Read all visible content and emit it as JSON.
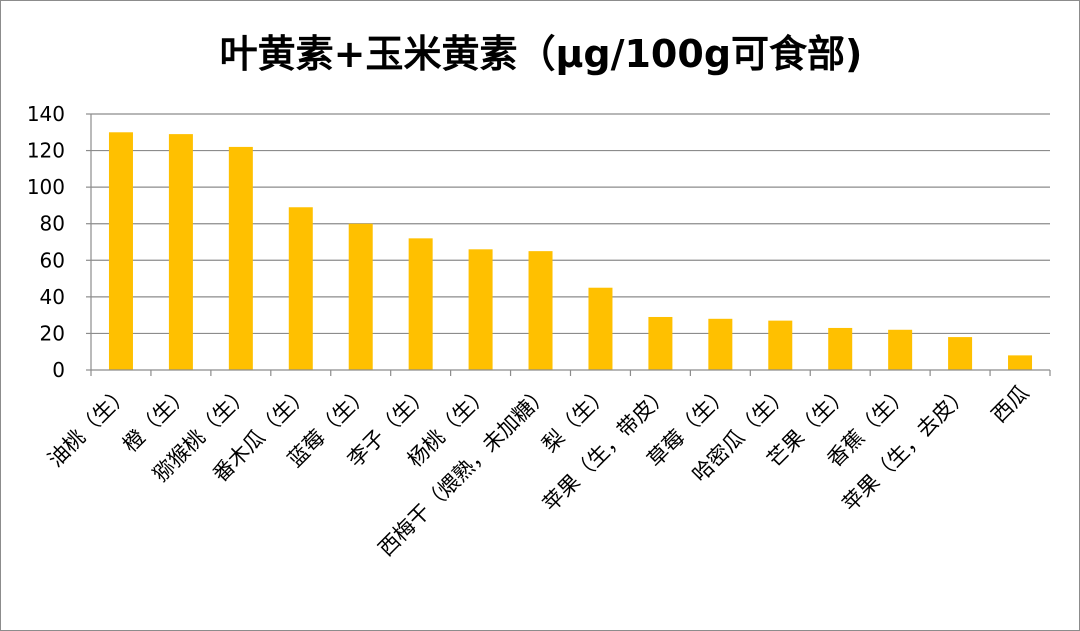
{
  "chart_data": {
    "type": "bar",
    "title": "叶黄素+玉米黄素（μg/100g可食部)",
    "categories": [
      "油桃（生）",
      "橙（生）",
      "猕猴桃（生）",
      "番木瓜（生）",
      "蓝莓（生）",
      "李子（生）",
      "杨桃（生）",
      "西梅干（煨熟，未加糖）",
      "梨（生）",
      "苹果（生，带皮）",
      "草莓（生）",
      "哈密瓜（生）",
      "芒果（生）",
      "香蕉（生）",
      "苹果（生，去皮）",
      "西瓜"
    ],
    "values": [
      130,
      129,
      122,
      89,
      80,
      72,
      66,
      65,
      45,
      29,
      28,
      27,
      23,
      22,
      18,
      8
    ],
    "yticks": [
      "0",
      "20",
      "40",
      "60",
      "80",
      "100",
      "120",
      "140"
    ],
    "ylim": [
      0,
      140
    ],
    "grid": true,
    "colors": {
      "bar": "#FFC000",
      "grid": "#8c8c8c",
      "axis": "#8c8c8c"
    }
  }
}
